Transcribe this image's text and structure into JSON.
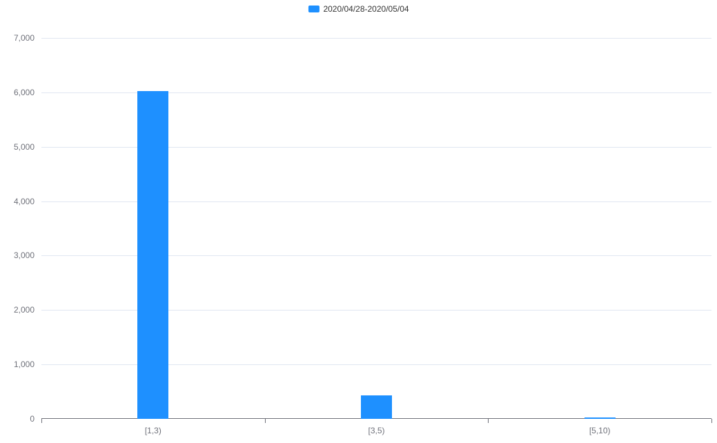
{
  "chart": {
    "type": "bar",
    "legend": {
      "label": "2020/04/28-2020/05/04",
      "swatch_color": "#1e90ff",
      "label_color": "#333333",
      "label_fontsize": 12
    },
    "background_color": "#ffffff",
    "grid_color": "#e0e6f1",
    "axis_line_color": "#6e7079",
    "tick_color": "#6e7079",
    "y": {
      "min": 0,
      "max": 7000,
      "step": 1000,
      "ticks": [
        {
          "value": 0,
          "label": "0"
        },
        {
          "value": 1000,
          "label": "1,000"
        },
        {
          "value": 2000,
          "label": "2,000"
        },
        {
          "value": 3000,
          "label": "3,000"
        },
        {
          "value": 4000,
          "label": "4,000"
        },
        {
          "value": 5000,
          "label": "5,000"
        },
        {
          "value": 6000,
          "label": "6,000"
        },
        {
          "value": 7000,
          "label": "7,000"
        }
      ],
      "label_color": "#6e7079",
      "label_fontsize": 12
    },
    "x": {
      "categories": [
        "[1,3)",
        "[3,5)",
        "[5,10)"
      ],
      "label_color": "#6e7079",
      "label_fontsize": 12
    },
    "series": {
      "color": "#1e90ff",
      "bar_width_fraction": 0.12,
      "values": [
        6030,
        430,
        25
      ]
    }
  }
}
